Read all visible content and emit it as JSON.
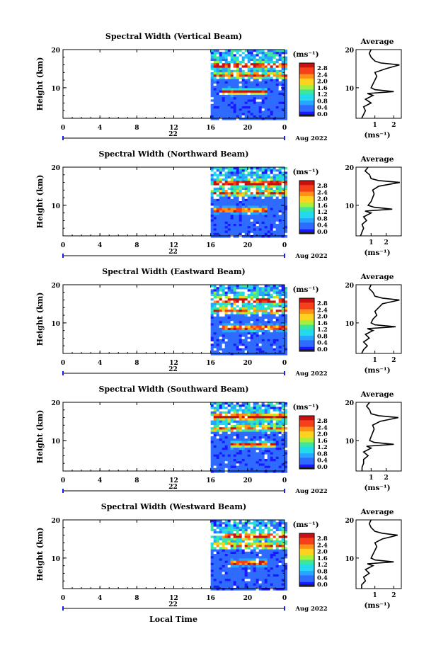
{
  "figure": {
    "xlabel": "Local Time",
    "date_label": "Aug 2022",
    "day_label": "22",
    "ylabel": "Height (km)",
    "colorbar_unit": "(ms⁻¹)",
    "avg_title": "Average",
    "avg_xlabel": "(ms⁻¹)"
  },
  "chart_data": [
    {
      "type": "heatmap",
      "title": "Spectral Width (Vertical Beam)",
      "xlim": [
        0,
        24
      ],
      "ylim": [
        2,
        20
      ],
      "xticks": [
        "0",
        "4",
        "8",
        "12",
        "16",
        "20",
        "0"
      ],
      "yticks": [
        "20",
        "10"
      ],
      "colorbar": [
        "2.8",
        "2.4",
        "2.0",
        "1.6",
        "1.2",
        "0.8",
        "0.4",
        "0.0"
      ],
      "data_start_hour": 16,
      "bands": [
        {
          "height": 9.2,
          "hour_start": 17,
          "hour_end": 22,
          "intensity": 0.95
        },
        {
          "height": 16.2,
          "hour_start": 16,
          "hour_end": 24,
          "intensity": 0.85
        },
        {
          "height": 13.5,
          "hour_start": 16,
          "hour_end": 24,
          "intensity": 0.6
        }
      ],
      "average": {
        "xlim": [
          0,
          2.4
        ],
        "xticks": [
          "1",
          "2"
        ],
        "profile": [
          [
            2,
            0.3
          ],
          [
            3,
            0.4
          ],
          [
            4,
            0.5
          ],
          [
            5,
            0.4
          ],
          [
            6,
            0.8
          ],
          [
            7,
            0.5
          ],
          [
            8,
            0.9
          ],
          [
            8.5,
            0.6
          ],
          [
            9,
            2.0
          ],
          [
            9.5,
            1.0
          ],
          [
            10,
            0.8
          ],
          [
            11,
            0.9
          ],
          [
            12,
            1.0
          ],
          [
            13,
            1.1
          ],
          [
            14,
            1.0
          ],
          [
            15,
            1.6
          ],
          [
            16,
            2.3
          ],
          [
            16.5,
            1.3
          ],
          [
            17,
            1.0
          ],
          [
            18,
            0.8
          ],
          [
            19,
            0.7
          ],
          [
            20,
            0.8
          ]
        ]
      }
    },
    {
      "type": "heatmap",
      "title": "Spectral Width (Northward Beam)",
      "xlim": [
        0,
        24
      ],
      "ylim": [
        2,
        20
      ],
      "xticks": [
        "0",
        "4",
        "8",
        "12",
        "16",
        "20",
        "0"
      ],
      "yticks": [
        "20",
        "10"
      ],
      "colorbar": [
        "2.8",
        "2.4",
        "2.0",
        "1.6",
        "1.2",
        "0.8",
        "0.4",
        "0.0"
      ],
      "data_start_hour": 16,
      "bands": [
        {
          "height": 9.0,
          "hour_start": 16,
          "hour_end": 22,
          "intensity": 0.9
        },
        {
          "height": 16.0,
          "hour_start": 16,
          "hour_end": 24,
          "intensity": 0.95
        },
        {
          "height": 13.5,
          "hour_start": 16,
          "hour_end": 24,
          "intensity": 0.55
        }
      ],
      "average": {
        "xlim": [
          0,
          3.0
        ],
        "xticks": [
          "1",
          "2"
        ],
        "profile": [
          [
            2,
            0.3
          ],
          [
            3,
            0.4
          ],
          [
            4,
            0.5
          ],
          [
            5,
            0.4
          ],
          [
            6,
            0.7
          ],
          [
            7,
            0.5
          ],
          [
            8,
            1.0
          ],
          [
            8.5,
            0.6
          ],
          [
            9,
            2.4
          ],
          [
            9.5,
            1.2
          ],
          [
            10,
            0.8
          ],
          [
            11,
            1.0
          ],
          [
            12,
            1.1
          ],
          [
            13,
            1.2
          ],
          [
            14,
            1.1
          ],
          [
            15,
            1.5
          ],
          [
            16,
            2.9
          ],
          [
            16.5,
            1.5
          ],
          [
            17,
            1.0
          ],
          [
            18,
            0.9
          ],
          [
            19,
            0.6
          ],
          [
            20,
            0.8
          ]
        ]
      }
    },
    {
      "type": "heatmap",
      "title": "Spectral Width (Eastward Beam)",
      "xlim": [
        0,
        24
      ],
      "ylim": [
        2,
        20
      ],
      "xticks": [
        "0",
        "4",
        "8",
        "12",
        "16",
        "20",
        "0"
      ],
      "yticks": [
        "20",
        "10"
      ],
      "colorbar": [
        "2.8",
        "2.4",
        "2.0",
        "1.6",
        "1.2",
        "0.8",
        "0.4",
        "0.0"
      ],
      "data_start_hour": 16,
      "bands": [
        {
          "height": 9.0,
          "hour_start": 17,
          "hour_end": 24,
          "intensity": 0.9
        },
        {
          "height": 16.2,
          "hour_start": 16,
          "hour_end": 24,
          "intensity": 0.9
        },
        {
          "height": 13.5,
          "hour_start": 16,
          "hour_end": 24,
          "intensity": 0.55
        }
      ],
      "average": {
        "xlim": [
          0,
          2.4
        ],
        "xticks": [
          "1",
          "2"
        ],
        "profile": [
          [
            2,
            0.3
          ],
          [
            3,
            0.4
          ],
          [
            4,
            0.6
          ],
          [
            5,
            0.4
          ],
          [
            6,
            0.7
          ],
          [
            7,
            0.5
          ],
          [
            8,
            0.9
          ],
          [
            8.5,
            0.6
          ],
          [
            9,
            2.1
          ],
          [
            9.5,
            1.0
          ],
          [
            10,
            0.8
          ],
          [
            11,
            0.9
          ],
          [
            12,
            1.1
          ],
          [
            13,
            1.0
          ],
          [
            14,
            1.2
          ],
          [
            15,
            1.4
          ],
          [
            16,
            2.3
          ],
          [
            16.5,
            1.4
          ],
          [
            17,
            1.0
          ],
          [
            18,
            0.9
          ],
          [
            19,
            0.7
          ],
          [
            20,
            0.8
          ]
        ]
      }
    },
    {
      "type": "heatmap",
      "title": "Spectral Width (Southward Beam)",
      "xlim": [
        0,
        24
      ],
      "ylim": [
        2,
        20
      ],
      "xticks": [
        "0",
        "4",
        "8",
        "12",
        "16",
        "20",
        "0"
      ],
      "yticks": [
        "20",
        "10"
      ],
      "colorbar": [
        "2.8",
        "2.4",
        "2.0",
        "1.6",
        "1.2",
        "0.8",
        "0.4",
        "0.0"
      ],
      "data_start_hour": 16,
      "bands": [
        {
          "height": 9.2,
          "hour_start": 18,
          "hour_end": 23,
          "intensity": 0.9
        },
        {
          "height": 16.5,
          "hour_start": 16,
          "hour_end": 24,
          "intensity": 0.9
        },
        {
          "height": 13.5,
          "hour_start": 16,
          "hour_end": 24,
          "intensity": 0.55
        }
      ],
      "average": {
        "xlim": [
          0,
          3.0
        ],
        "xticks": [
          "1",
          "2"
        ],
        "profile": [
          [
            2,
            0.4
          ],
          [
            3,
            0.4
          ],
          [
            4,
            0.5
          ],
          [
            5,
            0.5
          ],
          [
            6,
            0.8
          ],
          [
            7,
            0.5
          ],
          [
            8,
            1.0
          ],
          [
            8.5,
            0.7
          ],
          [
            9,
            2.5
          ],
          [
            9.5,
            1.2
          ],
          [
            10,
            0.9
          ],
          [
            11,
            1.0
          ],
          [
            12,
            1.1
          ],
          [
            13,
            1.2
          ],
          [
            14,
            1.1
          ],
          [
            15,
            1.6
          ],
          [
            16,
            2.8
          ],
          [
            16.5,
            1.5
          ],
          [
            17,
            1.0
          ],
          [
            18,
            0.9
          ],
          [
            19,
            0.7
          ],
          [
            20,
            0.9
          ]
        ]
      }
    },
    {
      "type": "heatmap",
      "title": "Spectral Width (Westward Beam)",
      "xlim": [
        0,
        24
      ],
      "ylim": [
        2,
        20
      ],
      "xticks": [
        "0",
        "4",
        "8",
        "12",
        "16",
        "20",
        "0"
      ],
      "yticks": [
        "20",
        "10"
      ],
      "colorbar": [
        "2.8",
        "2.4",
        "2.0",
        "1.6",
        "1.2",
        "0.8",
        "0.4",
        "0.0"
      ],
      "data_start_hour": 16,
      "bands": [
        {
          "height": 9.0,
          "hour_start": 18,
          "hour_end": 22,
          "intensity": 0.95
        },
        {
          "height": 16.0,
          "hour_start": 17,
          "hour_end": 24,
          "intensity": 0.85
        },
        {
          "height": 13.5,
          "hour_start": 16,
          "hour_end": 24,
          "intensity": 0.55
        }
      ],
      "average": {
        "xlim": [
          0,
          2.4
        ],
        "xticks": [
          "1",
          "2"
        ],
        "profile": [
          [
            2,
            0.3
          ],
          [
            3,
            0.3
          ],
          [
            4,
            0.5
          ],
          [
            5,
            0.4
          ],
          [
            6,
            0.7
          ],
          [
            7,
            0.5
          ],
          [
            8,
            0.9
          ],
          [
            8.5,
            0.6
          ],
          [
            9,
            2.0
          ],
          [
            9.5,
            1.0
          ],
          [
            10,
            0.8
          ],
          [
            11,
            0.9
          ],
          [
            12,
            1.0
          ],
          [
            13,
            1.1
          ],
          [
            14,
            1.0
          ],
          [
            15,
            1.4
          ],
          [
            16,
            2.2
          ],
          [
            16.5,
            1.4
          ],
          [
            17,
            1.0
          ],
          [
            18,
            0.8
          ],
          [
            19,
            0.7
          ],
          [
            20,
            0.8
          ]
        ]
      }
    }
  ]
}
